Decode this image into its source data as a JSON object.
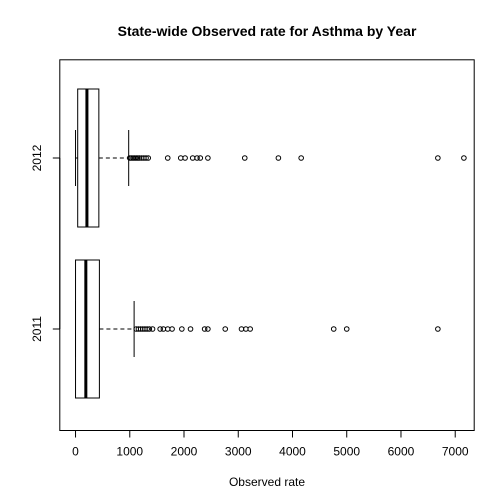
{
  "chart_data": {
    "type": "boxplot",
    "orientation": "horizontal",
    "title": "State-wide Observed rate for Asthma by Year",
    "xlabel": "Observed rate",
    "ylabel": "",
    "xlim": [
      0,
      7200
    ],
    "x_ticks": [
      0,
      1000,
      2000,
      3000,
      4000,
      5000,
      6000,
      7000
    ],
    "x_tick_labels": [
      "0",
      "1000",
      "2000",
      "3000",
      "4000",
      "5000",
      "6000",
      "7000"
    ],
    "grid": false,
    "legend": "none",
    "colors": {
      "box_fill": "#ffffff",
      "line": "#000000",
      "median": "#000000"
    },
    "categories": [
      "2011",
      "2012"
    ],
    "boxes": [
      {
        "category": "2011",
        "min": 0,
        "q1": 0,
        "median": 190,
        "q3": 440,
        "max": 1080,
        "outliers": [
          1120,
          1160,
          1200,
          1240,
          1280,
          1320,
          1360,
          1420,
          1560,
          1620,
          1700,
          1780,
          1960,
          2120,
          2380,
          2440,
          2760,
          3060,
          3140,
          3220,
          4760,
          5000,
          6680
        ]
      },
      {
        "category": "2012",
        "min": 0,
        "q1": 40,
        "median": 210,
        "q3": 430,
        "max": 980,
        "outliers": [
          1000,
          1030,
          1060,
          1090,
          1120,
          1150,
          1180,
          1220,
          1260,
          1300,
          1340,
          1700,
          1940,
          2020,
          2160,
          2240,
          2300,
          2440,
          3120,
          3740,
          4160,
          6680,
          7160
        ]
      }
    ]
  }
}
